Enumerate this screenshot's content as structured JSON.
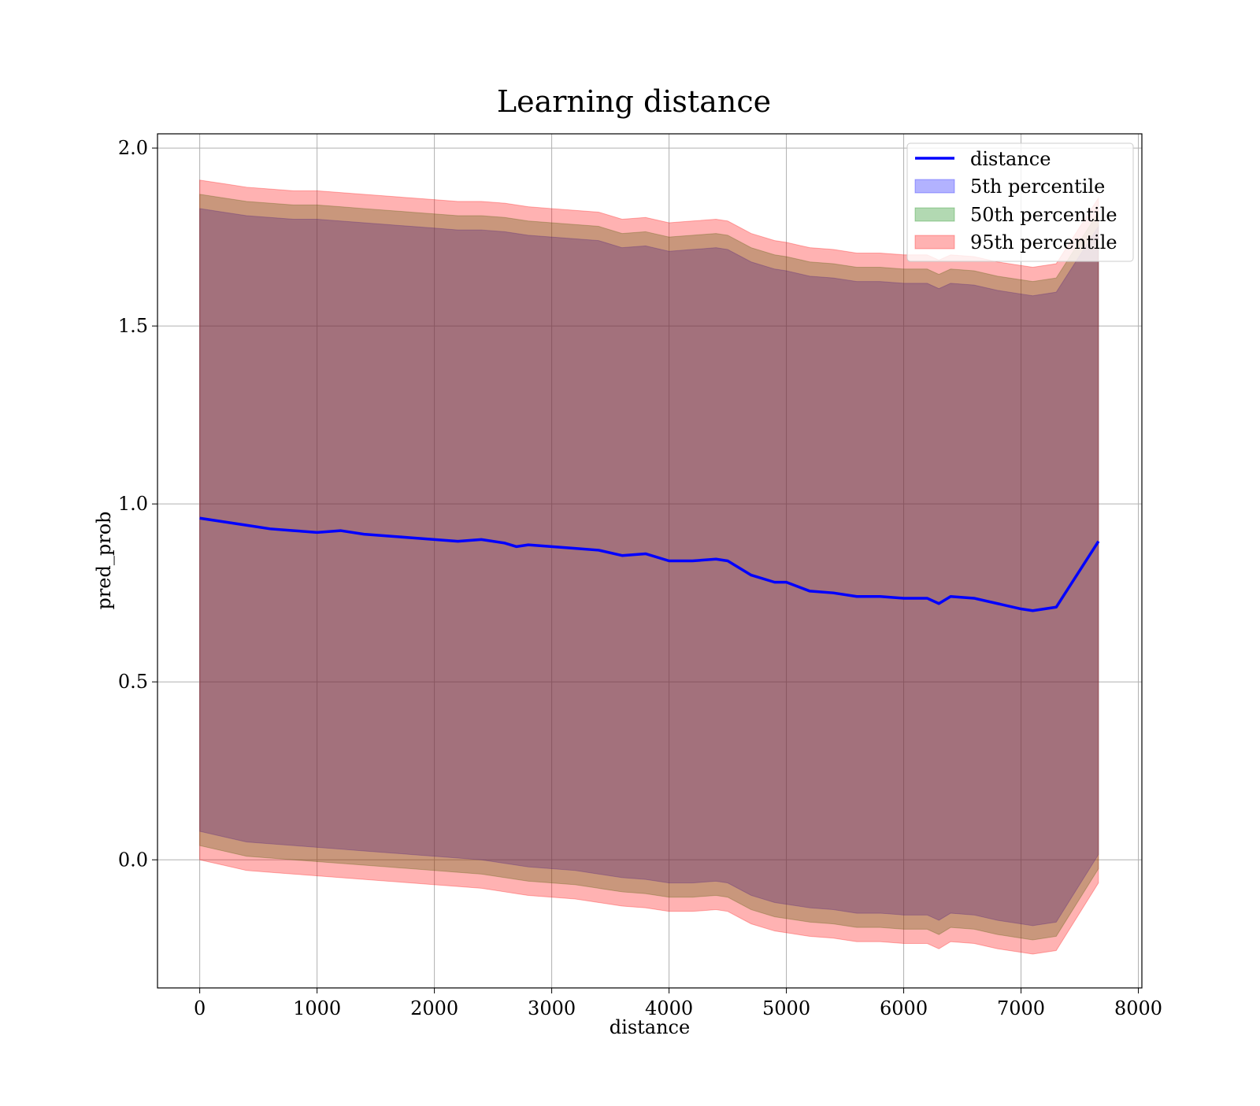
{
  "chart_data": {
    "type": "line",
    "title": "Learning distance",
    "xlabel": "distance",
    "ylabel": "pred_prob",
    "xlim": [
      -360,
      8030
    ],
    "ylim": [
      -0.36,
      2.04
    ],
    "xticks": [
      0,
      1000,
      2000,
      3000,
      4000,
      5000,
      6000,
      7000,
      8000
    ],
    "yticks": [
      0.0,
      0.5,
      1.0,
      1.5,
      2.0
    ],
    "grid": true,
    "legend_position": "top-right",
    "colors": {
      "line": "#0000ff",
      "band_5": "#0000ff",
      "band_50": "#008000",
      "band_95": "#ff0000"
    },
    "legend": [
      "distance",
      "5th percentile",
      "50th percentile",
      "95th percentile"
    ],
    "x": [
      0,
      200,
      400,
      600,
      800,
      1000,
      1200,
      1400,
      1600,
      1800,
      2000,
      2200,
      2400,
      2600,
      2700,
      2800,
      3000,
      3200,
      3400,
      3600,
      3800,
      4000,
      4200,
      4400,
      4500,
      4700,
      4900,
      5000,
      5200,
      5400,
      5600,
      5800,
      6000,
      6200,
      6300,
      6400,
      6600,
      6800,
      7000,
      7100,
      7300,
      7660
    ],
    "series": [
      {
        "name": "distance",
        "values": [
          0.96,
          0.95,
          0.94,
          0.93,
          0.925,
          0.92,
          0.925,
          0.915,
          0.91,
          0.905,
          0.9,
          0.895,
          0.9,
          0.89,
          0.88,
          0.885,
          0.88,
          0.875,
          0.87,
          0.855,
          0.86,
          0.84,
          0.84,
          0.845,
          0.84,
          0.8,
          0.78,
          0.78,
          0.755,
          0.75,
          0.74,
          0.74,
          0.735,
          0.735,
          0.72,
          0.74,
          0.735,
          0.72,
          0.705,
          0.7,
          0.71,
          0.895
        ]
      },
      {
        "name": "5th percentile",
        "lower": [
          0.08,
          0.065,
          0.05,
          0.045,
          0.04,
          0.035,
          0.03,
          0.025,
          0.02,
          0.015,
          0.01,
          0.005,
          0.0,
          -0.01,
          -0.015,
          -0.02,
          -0.025,
          -0.03,
          -0.04,
          -0.05,
          -0.055,
          -0.065,
          -0.065,
          -0.06,
          -0.065,
          -0.1,
          -0.12,
          -0.125,
          -0.135,
          -0.14,
          -0.15,
          -0.15,
          -0.155,
          -0.155,
          -0.17,
          -0.15,
          -0.155,
          -0.17,
          -0.18,
          -0.185,
          -0.175,
          0.015
        ],
        "upper": [
          1.83,
          1.82,
          1.81,
          1.805,
          1.8,
          1.8,
          1.795,
          1.79,
          1.785,
          1.78,
          1.775,
          1.77,
          1.77,
          1.765,
          1.76,
          1.755,
          1.75,
          1.745,
          1.74,
          1.72,
          1.725,
          1.71,
          1.715,
          1.72,
          1.715,
          1.68,
          1.66,
          1.655,
          1.64,
          1.635,
          1.625,
          1.625,
          1.62,
          1.62,
          1.605,
          1.62,
          1.615,
          1.6,
          1.59,
          1.585,
          1.595,
          1.78
        ]
      },
      {
        "name": "50th percentile",
        "lower": [
          0.04,
          0.025,
          0.01,
          0.005,
          0.0,
          -0.005,
          -0.01,
          -0.015,
          -0.02,
          -0.025,
          -0.03,
          -0.035,
          -0.04,
          -0.05,
          -0.055,
          -0.06,
          -0.065,
          -0.07,
          -0.08,
          -0.09,
          -0.095,
          -0.105,
          -0.105,
          -0.1,
          -0.105,
          -0.14,
          -0.16,
          -0.165,
          -0.175,
          -0.18,
          -0.19,
          -0.19,
          -0.195,
          -0.195,
          -0.21,
          -0.19,
          -0.195,
          -0.21,
          -0.22,
          -0.225,
          -0.215,
          -0.025
        ],
        "upper": [
          1.87,
          1.86,
          1.85,
          1.845,
          1.84,
          1.84,
          1.835,
          1.83,
          1.825,
          1.82,
          1.815,
          1.81,
          1.81,
          1.805,
          1.8,
          1.795,
          1.79,
          1.785,
          1.78,
          1.76,
          1.765,
          1.75,
          1.755,
          1.76,
          1.755,
          1.72,
          1.7,
          1.695,
          1.68,
          1.675,
          1.665,
          1.665,
          1.66,
          1.66,
          1.645,
          1.66,
          1.655,
          1.64,
          1.63,
          1.625,
          1.635,
          1.82
        ]
      },
      {
        "name": "95th percentile",
        "lower": [
          0.0,
          -0.015,
          -0.03,
          -0.035,
          -0.04,
          -0.045,
          -0.05,
          -0.055,
          -0.06,
          -0.065,
          -0.07,
          -0.075,
          -0.08,
          -0.09,
          -0.095,
          -0.1,
          -0.105,
          -0.11,
          -0.12,
          -0.13,
          -0.135,
          -0.145,
          -0.145,
          -0.14,
          -0.145,
          -0.18,
          -0.2,
          -0.205,
          -0.215,
          -0.22,
          -0.23,
          -0.23,
          -0.235,
          -0.235,
          -0.25,
          -0.23,
          -0.235,
          -0.25,
          -0.26,
          -0.265,
          -0.255,
          -0.065
        ],
        "upper": [
          1.91,
          1.9,
          1.89,
          1.885,
          1.88,
          1.88,
          1.875,
          1.87,
          1.865,
          1.86,
          1.855,
          1.85,
          1.85,
          1.845,
          1.84,
          1.835,
          1.83,
          1.825,
          1.82,
          1.8,
          1.805,
          1.79,
          1.795,
          1.8,
          1.795,
          1.76,
          1.74,
          1.735,
          1.72,
          1.715,
          1.705,
          1.705,
          1.7,
          1.7,
          1.685,
          1.7,
          1.695,
          1.68,
          1.67,
          1.665,
          1.675,
          1.86
        ]
      }
    ]
  }
}
